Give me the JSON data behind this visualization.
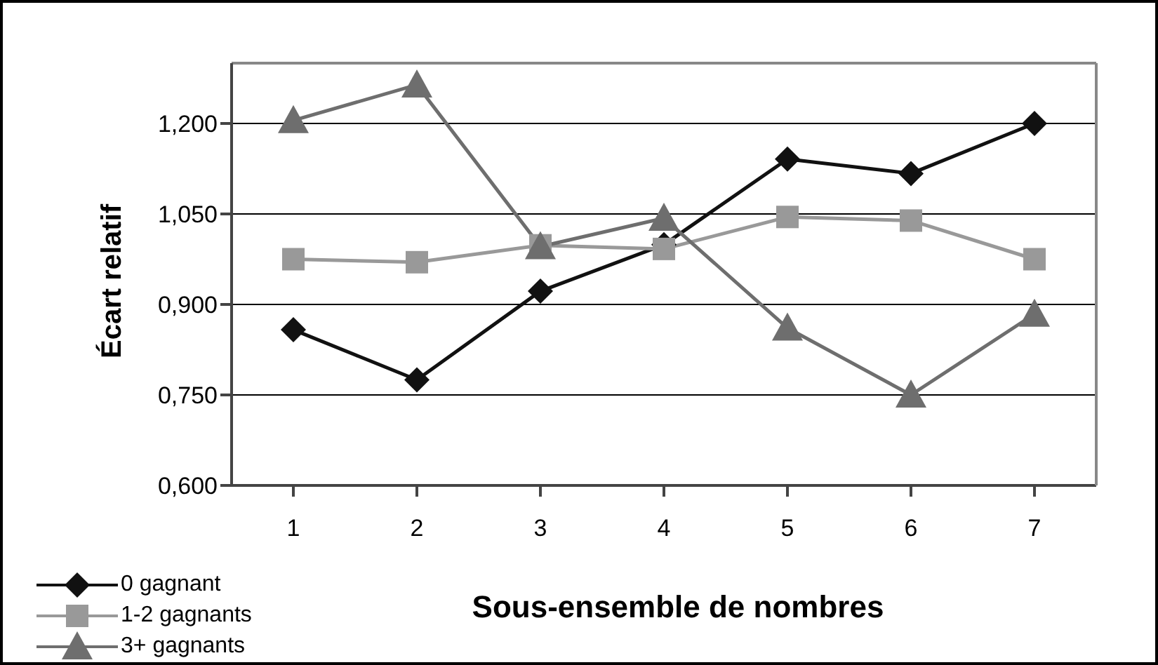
{
  "chart_data": {
    "type": "line",
    "xlabel": "Sous-ensemble de nombres",
    "ylabel": "Écart relatif",
    "categories": [
      "1",
      "2",
      "3",
      "4",
      "5",
      "6",
      "7"
    ],
    "series": [
      {
        "name": "0 gagnant",
        "color": "#111111",
        "marker": "diamond",
        "values": [
          0.858,
          0.775,
          0.922,
          0.999,
          1.141,
          1.117,
          1.2
        ]
      },
      {
        "name": "1-2 gagnants",
        "color": "#999999",
        "marker": "square",
        "values": [
          0.975,
          0.97,
          0.998,
          0.992,
          1.045,
          1.039,
          0.975
        ]
      },
      {
        "name": "3+ gagnants",
        "color": "#6e6e6e",
        "marker": "triangle",
        "values": [
          1.205,
          1.264,
          0.996,
          1.043,
          0.861,
          0.75,
          0.884
        ]
      }
    ],
    "ylim": [
      0.6,
      1.3
    ],
    "yticks": [
      {
        "value": 0.6,
        "label": "0,600"
      },
      {
        "value": 0.75,
        "label": "0,750"
      },
      {
        "value": 0.9,
        "label": "0,900"
      },
      {
        "value": 1.05,
        "label": "1,050"
      },
      {
        "value": 1.2,
        "label": "1,200"
      }
    ],
    "grid": "y",
    "legend": "bottom left",
    "line_style": "solid"
  }
}
